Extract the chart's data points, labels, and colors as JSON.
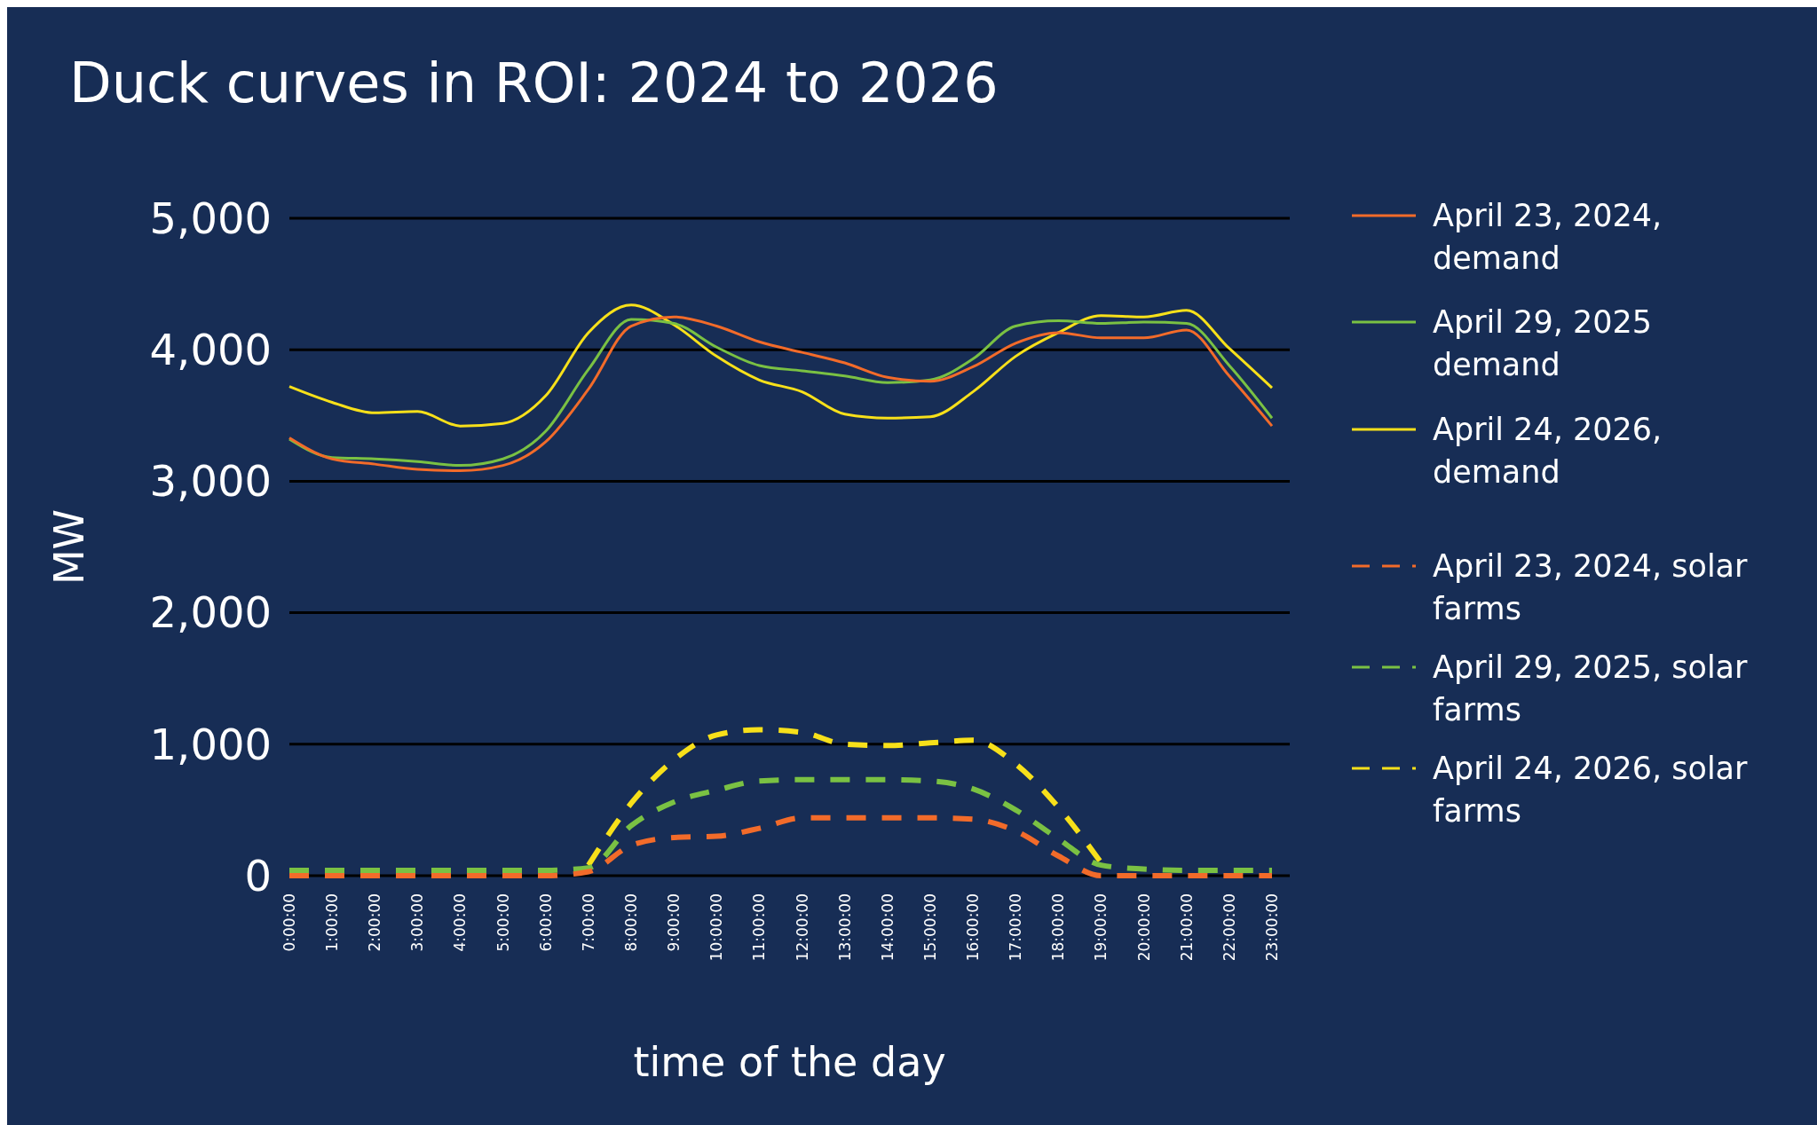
{
  "chart_data": {
    "type": "line",
    "title": "Duck curves in ROI: 2024 to 2026",
    "xlabel": "time of the day",
    "ylabel": "MW",
    "categories": [
      "0:00:00",
      "1:00:00",
      "2:00:00",
      "3:00:00",
      "4:00:00",
      "5:00:00",
      "6:00:00",
      "7:00:00",
      "8:00:00",
      "9:00:00",
      "10:00:00",
      "11:00:00",
      "12:00:00",
      "13:00:00",
      "14:00:00",
      "15:00:00",
      "16:00:00",
      "17:00:00",
      "18:00:00",
      "19:00:00",
      "20:00:00",
      "21:00:00",
      "22:00:00",
      "23:00:00"
    ],
    "ylim": [
      0,
      5000
    ],
    "yticks": [
      {
        "value": 0,
        "label": "0"
      },
      {
        "value": 1000,
        "label": "1,000"
      },
      {
        "value": 2000,
        "label": "2,000"
      },
      {
        "value": 3000,
        "label": "3,000"
      },
      {
        "value": 4000,
        "label": "4,000"
      },
      {
        "value": 5000,
        "label": "5,000"
      }
    ],
    "grid": "y",
    "legend": "right",
    "marker": "none",
    "series": [
      {
        "name": "April 23, 2024, demand",
        "color": "#f26b2a",
        "line_style": "solid",
        "values": [
          3330,
          3170,
          3130,
          3090,
          3080,
          3120,
          3300,
          3700,
          4180,
          4250,
          4180,
          4060,
          3980,
          3900,
          3790,
          3760,
          3870,
          4050,
          4130,
          4090,
          4090,
          4150,
          3800,
          3420
        ]
      },
      {
        "name": "April 29, 2025 demand",
        "color": "#7ac143",
        "line_style": "solid",
        "values": [
          3320,
          3180,
          3170,
          3150,
          3120,
          3170,
          3380,
          3850,
          4230,
          4200,
          4020,
          3880,
          3840,
          3800,
          3750,
          3770,
          3930,
          4180,
          4220,
          4200,
          4210,
          4200,
          3880,
          3480
        ]
      },
      {
        "name": "April 24, 2026, demand",
        "color": "#f7e01a",
        "line_style": "solid",
        "values": [
          3720,
          3600,
          3520,
          3530,
          3420,
          3440,
          3650,
          4130,
          4340,
          4190,
          3950,
          3770,
          3680,
          3510,
          3480,
          3490,
          3680,
          3950,
          4130,
          4260,
          4250,
          4300,
          4010,
          3710
        ]
      },
      {
        "name": "April 23, 2024, solar farms",
        "color": "#f26b2a",
        "line_style": "dashed",
        "values": [
          0,
          0,
          0,
          0,
          0,
          0,
          0,
          30,
          230,
          290,
          300,
          360,
          440,
          440,
          440,
          440,
          430,
          340,
          150,
          0,
          0,
          0,
          0,
          0
        ]
      },
      {
        "name": "April 29, 2025, solar farms",
        "color": "#7ac143",
        "line_style": "dashed",
        "values": [
          40,
          40,
          40,
          40,
          40,
          40,
          40,
          60,
          380,
          560,
          650,
          720,
          730,
          730,
          730,
          720,
          660,
          500,
          280,
          80,
          50,
          40,
          40,
          40
        ]
      },
      {
        "name": "April 24, 2026, solar farms",
        "color": "#f7e01a",
        "line_style": "dashed",
        "values": [
          null,
          null,
          null,
          null,
          null,
          null,
          null,
          80,
          550,
          880,
          1070,
          1110,
          1090,
          1000,
          990,
          1010,
          1030,
          850,
          520,
          100,
          null,
          null,
          null,
          null
        ]
      }
    ]
  }
}
